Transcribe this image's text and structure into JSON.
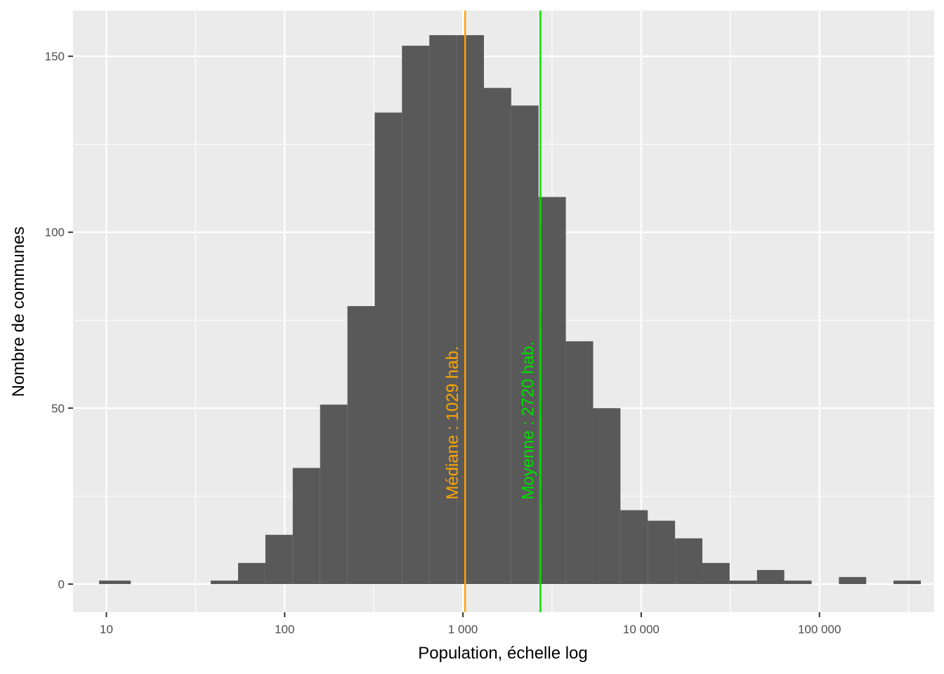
{
  "chart_data": {
    "type": "bar",
    "subtype": "histogram",
    "x_scale": "log10",
    "xlabel": "Population, échelle log",
    "ylabel": "Nombre de communes",
    "xlim": [
      6.5,
      440000
    ],
    "ylim": [
      -8,
      163
    ],
    "x_ticks": [
      {
        "value": 10,
        "label": "10"
      },
      {
        "value": 100,
        "label": "100"
      },
      {
        "value": 1000,
        "label": "1 000"
      },
      {
        "value": 10000,
        "label": "10 000"
      },
      {
        "value": 100000,
        "label": "100 000"
      }
    ],
    "y_ticks": [
      {
        "value": 0,
        "label": "0"
      },
      {
        "value": 50,
        "label": "50"
      },
      {
        "value": 100,
        "label": "100"
      },
      {
        "value": 150,
        "label": "150"
      }
    ],
    "bin_width_log10": 0.1765,
    "bins": [
      {
        "x0": 9.1,
        "x1": 13.7,
        "count": 1
      },
      {
        "x0": 38.5,
        "x1": 54.8,
        "count": 1
      },
      {
        "x0": 54.8,
        "x1": 78.0,
        "count": 6
      },
      {
        "x0": 78.0,
        "x1": 111.0,
        "count": 14
      },
      {
        "x0": 111.0,
        "x1": 158.0,
        "count": 33
      },
      {
        "x0": 158.0,
        "x1": 225.0,
        "count": 51
      },
      {
        "x0": 225.0,
        "x1": 320.0,
        "count": 79
      },
      {
        "x0": 320.0,
        "x1": 455.0,
        "count": 134
      },
      {
        "x0": 455.0,
        "x1": 648.0,
        "count": 153
      },
      {
        "x0": 648.0,
        "x1": 922.0,
        "count": 156
      },
      {
        "x0": 922.0,
        "x1": 1312.0,
        "count": 156
      },
      {
        "x0": 1312.0,
        "x1": 1866.0,
        "count": 141
      },
      {
        "x0": 1866.0,
        "x1": 2655.0,
        "count": 136
      },
      {
        "x0": 2655.0,
        "x1": 3778.0,
        "count": 110
      },
      {
        "x0": 3778.0,
        "x1": 5376.0,
        "count": 69
      },
      {
        "x0": 5376.0,
        "x1": 7649.0,
        "count": 50
      },
      {
        "x0": 7649.0,
        "x1": 10884.0,
        "count": 21
      },
      {
        "x0": 10884.0,
        "x1": 15487.0,
        "count": 18
      },
      {
        "x0": 15487.0,
        "x1": 22036.0,
        "count": 13
      },
      {
        "x0": 22036.0,
        "x1": 31356.0,
        "count": 6
      },
      {
        "x0": 31356.0,
        "x1": 44617.0,
        "count": 1
      },
      {
        "x0": 44617.0,
        "x1": 63485.0,
        "count": 4
      },
      {
        "x0": 63485.0,
        "x1": 90333.0,
        "count": 1
      },
      {
        "x0": 128535.0,
        "x1": 182893.0,
        "count": 2
      },
      {
        "x0": 260240.0,
        "x1": 370300.0,
        "count": 1
      }
    ],
    "bar_color": "#595959",
    "panel_background": "#ebebeb",
    "grid": true,
    "reference_lines": [
      {
        "value": 1029,
        "label": "Médiane : 1029 hab.",
        "color": "#ffa500"
      },
      {
        "value": 2720,
        "label": "Moyenne : 2720 hab.",
        "color": "#00e000"
      }
    ]
  }
}
